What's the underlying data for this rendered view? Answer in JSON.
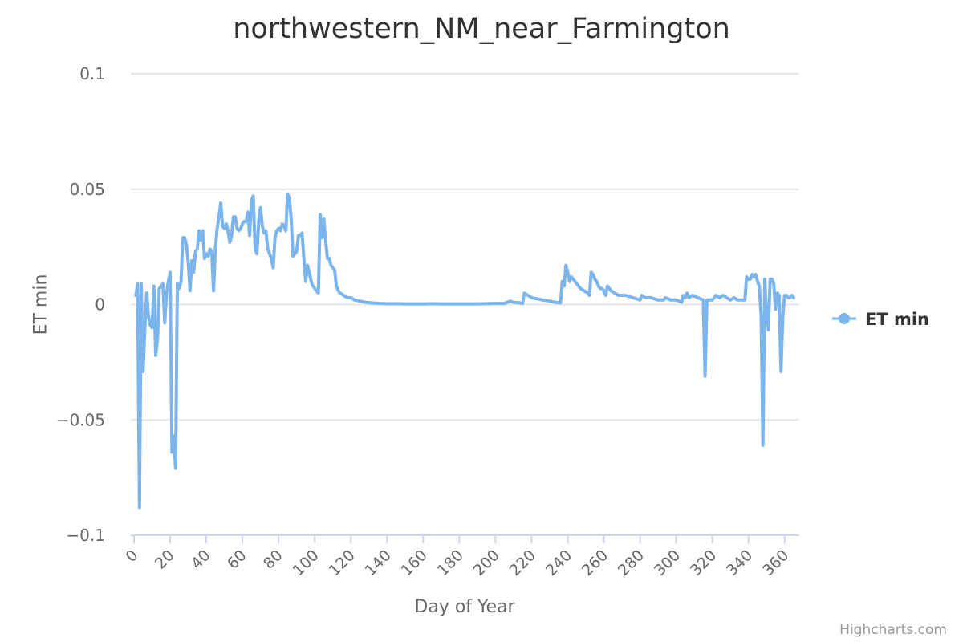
{
  "chart_data": {
    "type": "line",
    "title": "northwestern_NM_near_Farmington",
    "xlabel": "Day of Year",
    "ylabel": "ET min",
    "xlim": [
      0,
      365
    ],
    "ylim": [
      -0.1,
      0.1
    ],
    "y_ticks": [
      -0.1,
      -0.05,
      0,
      0.05,
      0.1
    ],
    "y_tick_labels": [
      "−0.1",
      "−0.05",
      "0",
      "0.05",
      "0.1"
    ],
    "x_ticks": [
      0,
      20,
      40,
      60,
      80,
      100,
      120,
      140,
      160,
      180,
      200,
      220,
      240,
      260,
      280,
      300,
      320,
      340,
      360
    ],
    "grid": true,
    "legend": "right",
    "series": [
      {
        "name": "ET min",
        "color": "#7cb5ec",
        "points": [
          [
            1,
            0.004
          ],
          [
            2,
            0.009
          ],
          [
            3,
            -0.088
          ],
          [
            4,
            0.009
          ],
          [
            5,
            -0.029
          ],
          [
            6,
            -0.01
          ],
          [
            7,
            0.005
          ],
          [
            8,
            -0.005
          ],
          [
            9,
            -0.009
          ],
          [
            10,
            -0.01
          ],
          [
            11,
            0.008
          ],
          [
            12,
            -0.022
          ],
          [
            13,
            -0.015
          ],
          [
            14,
            0.007
          ],
          [
            15,
            0.008
          ],
          [
            16,
            0.009
          ],
          [
            17,
            -0.008
          ],
          [
            18,
            0.005
          ],
          [
            19,
            0.01
          ],
          [
            20,
            0.014
          ],
          [
            21,
            -0.064
          ],
          [
            22,
            -0.057
          ],
          [
            23,
            -0.071
          ],
          [
            24,
            0.009
          ],
          [
            25,
            0.007
          ],
          [
            26,
            0.01
          ],
          [
            27,
            0.029
          ],
          [
            28,
            0.029
          ],
          [
            29,
            0.026
          ],
          [
            30,
            0.018
          ],
          [
            31,
            0.006
          ],
          [
            32,
            0.019
          ],
          [
            33,
            0.014
          ],
          [
            34,
            0.023
          ],
          [
            35,
            0.024
          ],
          [
            36,
            0.032
          ],
          [
            37,
            0.028
          ],
          [
            38,
            0.032
          ],
          [
            39,
            0.02
          ],
          [
            40,
            0.022
          ],
          [
            41,
            0.021
          ],
          [
            42,
            0.024
          ],
          [
            43,
            0.023
          ],
          [
            44,
            0.006
          ],
          [
            45,
            0.024
          ],
          [
            46,
            0.033
          ],
          [
            47,
            0.038
          ],
          [
            48,
            0.044
          ],
          [
            49,
            0.034
          ],
          [
            50,
            0.033
          ],
          [
            51,
            0.035
          ],
          [
            52,
            0.032
          ],
          [
            53,
            0.027
          ],
          [
            54,
            0.03
          ],
          [
            55,
            0.038
          ],
          [
            56,
            0.038
          ],
          [
            57,
            0.033
          ],
          [
            58,
            0.032
          ],
          [
            59,
            0.033
          ],
          [
            60,
            0.035
          ],
          [
            61,
            0.036
          ],
          [
            62,
            0.036
          ],
          [
            63,
            0.04
          ],
          [
            64,
            0.03
          ],
          [
            65,
            0.045
          ],
          [
            66,
            0.047
          ],
          [
            67,
            0.024
          ],
          [
            68,
            0.022
          ],
          [
            69,
            0.036
          ],
          [
            70,
            0.042
          ],
          [
            71,
            0.034
          ],
          [
            72,
            0.031
          ],
          [
            73,
            0.032
          ],
          [
            74,
            0.024
          ],
          [
            75,
            0.022
          ],
          [
            76,
            0.02
          ],
          [
            77,
            0.016
          ],
          [
            78,
            0.029
          ],
          [
            79,
            0.032
          ],
          [
            80,
            0.033
          ],
          [
            81,
            0.032
          ],
          [
            82,
            0.035
          ],
          [
            83,
            0.034
          ],
          [
            84,
            0.032
          ],
          [
            85,
            0.048
          ],
          [
            86,
            0.046
          ],
          [
            87,
            0.037
          ],
          [
            88,
            0.021
          ],
          [
            89,
            0.022
          ],
          [
            90,
            0.023
          ],
          [
            91,
            0.03
          ],
          [
            92,
            0.03
          ],
          [
            93,
            0.031
          ],
          [
            94,
            0.02
          ],
          [
            95,
            0.01
          ],
          [
            96,
            0.017
          ],
          [
            97,
            0.014
          ],
          [
            98,
            0.01
          ],
          [
            99,
            0.008
          ],
          [
            100,
            0.007
          ],
          [
            101,
            0.006
          ],
          [
            102,
            0.005
          ],
          [
            103,
            0.039
          ],
          [
            104,
            0.029
          ],
          [
            105,
            0.037
          ],
          [
            106,
            0.028
          ],
          [
            107,
            0.02
          ],
          [
            108,
            0.02
          ],
          [
            109,
            0.017
          ],
          [
            110,
            0.016
          ],
          [
            111,
            0.015
          ],
          [
            112,
            0.008
          ],
          [
            113,
            0.006
          ],
          [
            114,
            0.005
          ],
          [
            116,
            0.004
          ],
          [
            118,
            0.003
          ],
          [
            120,
            0.003
          ],
          [
            122,
            0.002
          ],
          [
            125,
            0.0015
          ],
          [
            128,
            0.001
          ],
          [
            132,
            0.0007
          ],
          [
            136,
            0.0005
          ],
          [
            140,
            0.0004
          ],
          [
            145,
            0.0004
          ],
          [
            150,
            0.0003
          ],
          [
            155,
            0.0003
          ],
          [
            160,
            0.0003
          ],
          [
            165,
            0.0004
          ],
          [
            170,
            0.0003
          ],
          [
            175,
            0.0003
          ],
          [
            180,
            0.0003
          ],
          [
            185,
            0.0003
          ],
          [
            190,
            0.0003
          ],
          [
            195,
            0.0004
          ],
          [
            200,
            0.0005
          ],
          [
            205,
            0.0005
          ],
          [
            208,
            0.0015
          ],
          [
            210,
            0.001
          ],
          [
            213,
            0.0008
          ],
          [
            215,
            0.0005
          ],
          [
            216,
            0.005
          ],
          [
            218,
            0.004
          ],
          [
            220,
            0.003
          ],
          [
            223,
            0.0025
          ],
          [
            226,
            0.002
          ],
          [
            230,
            0.0015
          ],
          [
            233,
            0.001
          ],
          [
            236,
            0.0008
          ],
          [
            237,
            0.01
          ],
          [
            238,
            0.008
          ],
          [
            239,
            0.017
          ],
          [
            240,
            0.014
          ],
          [
            241,
            0.01
          ],
          [
            242,
            0.012
          ],
          [
            243,
            0.011
          ],
          [
            244,
            0.01
          ],
          [
            245,
            0.009
          ],
          [
            247,
            0.007
          ],
          [
            249,
            0.006
          ],
          [
            251,
            0.005
          ],
          [
            252,
            0.004
          ],
          [
            253,
            0.014
          ],
          [
            254,
            0.013
          ],
          [
            255,
            0.011
          ],
          [
            256,
            0.01
          ],
          [
            257,
            0.008
          ],
          [
            258,
            0.007
          ],
          [
            259,
            0.007
          ],
          [
            260,
            0.006
          ],
          [
            261,
            0.004
          ],
          [
            262,
            0.008
          ],
          [
            263,
            0.007
          ],
          [
            264,
            0.006
          ],
          [
            266,
            0.005
          ],
          [
            268,
            0.004
          ],
          [
            272,
            0.004
          ],
          [
            276,
            0.003
          ],
          [
            280,
            0.002
          ],
          [
            281,
            0.004
          ],
          [
            283,
            0.003
          ],
          [
            286,
            0.003
          ],
          [
            290,
            0.002
          ],
          [
            293,
            0.002
          ],
          [
            294,
            0.003
          ],
          [
            297,
            0.002
          ],
          [
            300,
            0.002
          ],
          [
            303,
            0.001
          ],
          [
            304,
            0.004
          ],
          [
            305,
            0.003
          ],
          [
            306,
            0.005
          ],
          [
            307,
            0.003
          ],
          [
            309,
            0.004
          ],
          [
            312,
            0.003
          ],
          [
            315,
            0.002
          ],
          [
            316,
            -0.031
          ],
          [
            317,
            0.002
          ],
          [
            318,
            0.002
          ],
          [
            320,
            0.002
          ],
          [
            321,
            0.003
          ],
          [
            322,
            0.004
          ],
          [
            324,
            0.003
          ],
          [
            326,
            0.004
          ],
          [
            328,
            0.003
          ],
          [
            330,
            0.002
          ],
          [
            332,
            0.003
          ],
          [
            334,
            0.002
          ],
          [
            336,
            0.002
          ],
          [
            338,
            0.002
          ],
          [
            339,
            0.012
          ],
          [
            340,
            0.011
          ],
          [
            341,
            0.011
          ],
          [
            342,
            0.013
          ],
          [
            343,
            0.012
          ],
          [
            344,
            0.013
          ],
          [
            345,
            0.01
          ],
          [
            346,
            0.008
          ],
          [
            347,
            -0.005
          ],
          [
            348,
            -0.061
          ],
          [
            349,
            0.011
          ],
          [
            350,
            -0.005
          ],
          [
            351,
            -0.011
          ],
          [
            352,
            0.011
          ],
          [
            353,
            0.011
          ],
          [
            354,
            0.009
          ],
          [
            355,
            -0.002
          ],
          [
            356,
            0.005
          ],
          [
            357,
            0.004
          ],
          [
            358,
            -0.029
          ],
          [
            359,
            -0.005
          ],
          [
            360,
            0.004
          ],
          [
            361,
            0.004
          ],
          [
            362,
            0.003
          ],
          [
            363,
            0.003
          ],
          [
            364,
            0.004
          ],
          [
            365,
            0.003
          ]
        ]
      }
    ]
  },
  "credits": "Highcharts.com"
}
